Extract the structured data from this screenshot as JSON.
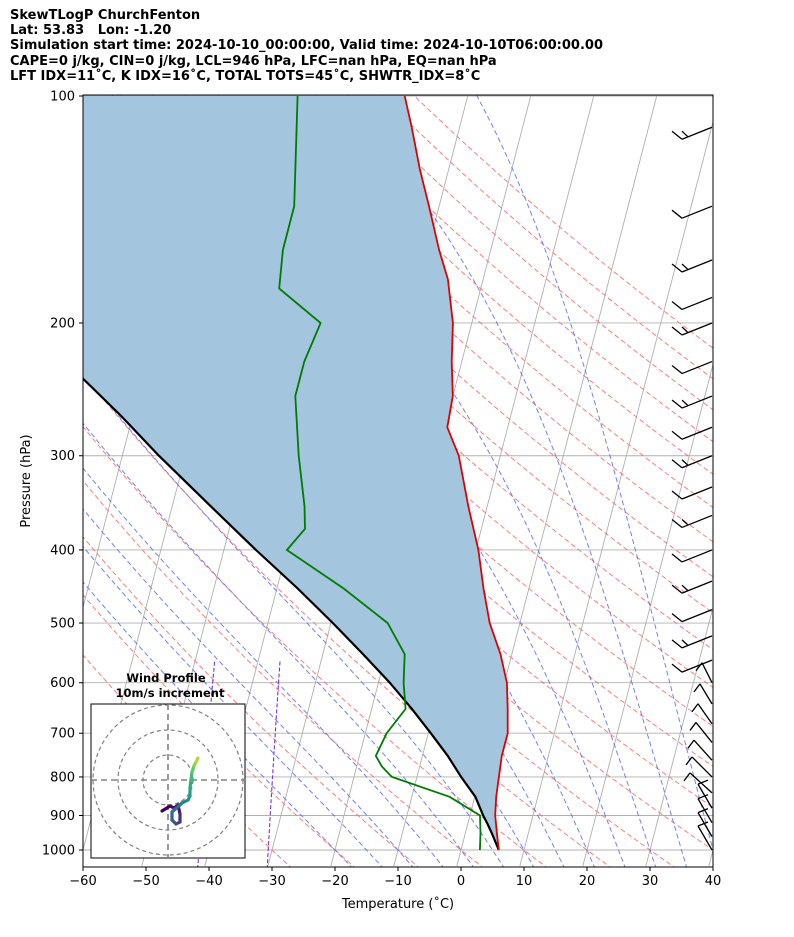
{
  "header": {
    "line1": "SkewTLogP ChurchFenton",
    "line2": "Lat: 53.83   Lon: -1.20",
    "line3": "Simulation start time: 2024-10-10_00:00:00, Valid time: 2024-10-10T06:00:00.00",
    "line4": "CAPE=0 j/kg, CIN=0 j/kg, LCL=946 hPa, LFC=nan hPa, EQ=nan hPa",
    "line5": "LFT IDX=11˚C, K IDX=16˚C, TOTAL TOTS=45˚C, SHWTR_IDX=8˚C"
  },
  "colors": {
    "temperature": "#e00000",
    "dewpoint": "#007a00",
    "parcel": "#000000",
    "shade": "#a3c6de",
    "dry_adiabat": "#ff6666",
    "moist_adiabat": "#5a6cf0",
    "mixing_ratio": "#7a34c8",
    "isotherm": "#b0b0b0"
  },
  "chart_data": [
    {
      "type": "line",
      "subtype": "skewt",
      "xlabel": "Temperature (˚C)",
      "ylabel": "Pressure (hPa)",
      "xlim": [
        -60,
        40
      ],
      "ylim": [
        1050,
        100
      ],
      "y_scale": "log",
      "x_ticks": [
        "−60",
        "−50",
        "−40",
        "−30",
        "−20",
        "−10",
        "0",
        "10",
        "20",
        "30",
        "40"
      ],
      "y_ticks": [
        "100",
        "200",
        "300",
        "400",
        "500",
        "600",
        "700",
        "800",
        "900",
        "1000"
      ],
      "grid": true,
      "series": [
        {
          "key": "temperature",
          "points": [
            [
              6,
              1000
            ],
            [
              5,
              950
            ],
            [
              4,
              900
            ],
            [
              3.4,
              850
            ],
            [
              3,
              800
            ],
            [
              2.6,
              750
            ],
            [
              2.6,
              700
            ],
            [
              1.6,
              650
            ],
            [
              0.4,
              600
            ],
            [
              -1.8,
              550
            ],
            [
              -4.8,
              500
            ],
            [
              -7.2,
              450
            ],
            [
              -9.6,
              400
            ],
            [
              -13,
              350
            ],
            [
              -16.6,
              300
            ],
            [
              -19.6,
              275
            ],
            [
              -20,
              250
            ],
            [
              -21.6,
              225
            ],
            [
              -23,
              200
            ],
            [
              -25.6,
              175
            ],
            [
              -28.2,
              160
            ],
            [
              -31.6,
              140
            ],
            [
              -34.6,
              125
            ],
            [
              -37.6,
              110
            ],
            [
              -40,
              100
            ]
          ]
        },
        {
          "key": "dewpoint",
          "points": [
            [
              3,
              1000
            ],
            [
              2.4,
              950
            ],
            [
              1.6,
              900
            ],
            [
              -4,
              850
            ],
            [
              -14,
              800
            ],
            [
              -16,
              775
            ],
            [
              -17.4,
              750
            ],
            [
              -16.6,
              700
            ],
            [
              -14.6,
              650
            ],
            [
              -16,
              600
            ],
            [
              -17,
              550
            ],
            [
              -21,
              500
            ],
            [
              -29.4,
              450
            ],
            [
              -40,
              400
            ],
            [
              -38,
              375
            ],
            [
              -39,
              350
            ],
            [
              -42,
              300
            ],
            [
              -45,
              250
            ],
            [
              -45,
              225
            ],
            [
              -44,
              200
            ],
            [
              -52,
              180
            ],
            [
              -53,
              160
            ],
            [
              -53,
              140
            ],
            [
              -57,
              100
            ]
          ]
        },
        {
          "key": "parcel",
          "points": [
            [
              6,
              1000
            ],
            [
              4.2,
              950
            ],
            [
              3.2,
              925
            ],
            [
              2.1,
              900
            ],
            [
              0.1,
              850
            ],
            [
              -3.0,
              800
            ],
            [
              -6.0,
              750
            ],
            [
              -9.6,
              700
            ],
            [
              -13.6,
              650
            ],
            [
              -18.2,
              600
            ],
            [
              -23.6,
              550
            ],
            [
              -29.7,
              500
            ],
            [
              -36.7,
              450
            ],
            [
              -44.9,
              400
            ],
            [
              -53.9,
              350
            ],
            [
              -64.2,
              300
            ],
            [
              -72,
              265
            ],
            [
              -80,
              235
            ],
            [
              -88,
              210
            ],
            [
              -95,
              190
            ],
            [
              -101,
              175
            ],
            [
              -110,
              155
            ],
            [
              -118,
              140
            ],
            [
              -126,
              125
            ],
            [
              -134,
              112
            ],
            [
              -141,
              100
            ]
          ]
        }
      ]
    },
    {
      "type": "line",
      "subtype": "hodograph",
      "title": "Wind Profile",
      "subtitle": "10m/s increment",
      "ring_interval_ms": 10,
      "rings": 3
    }
  ]
}
